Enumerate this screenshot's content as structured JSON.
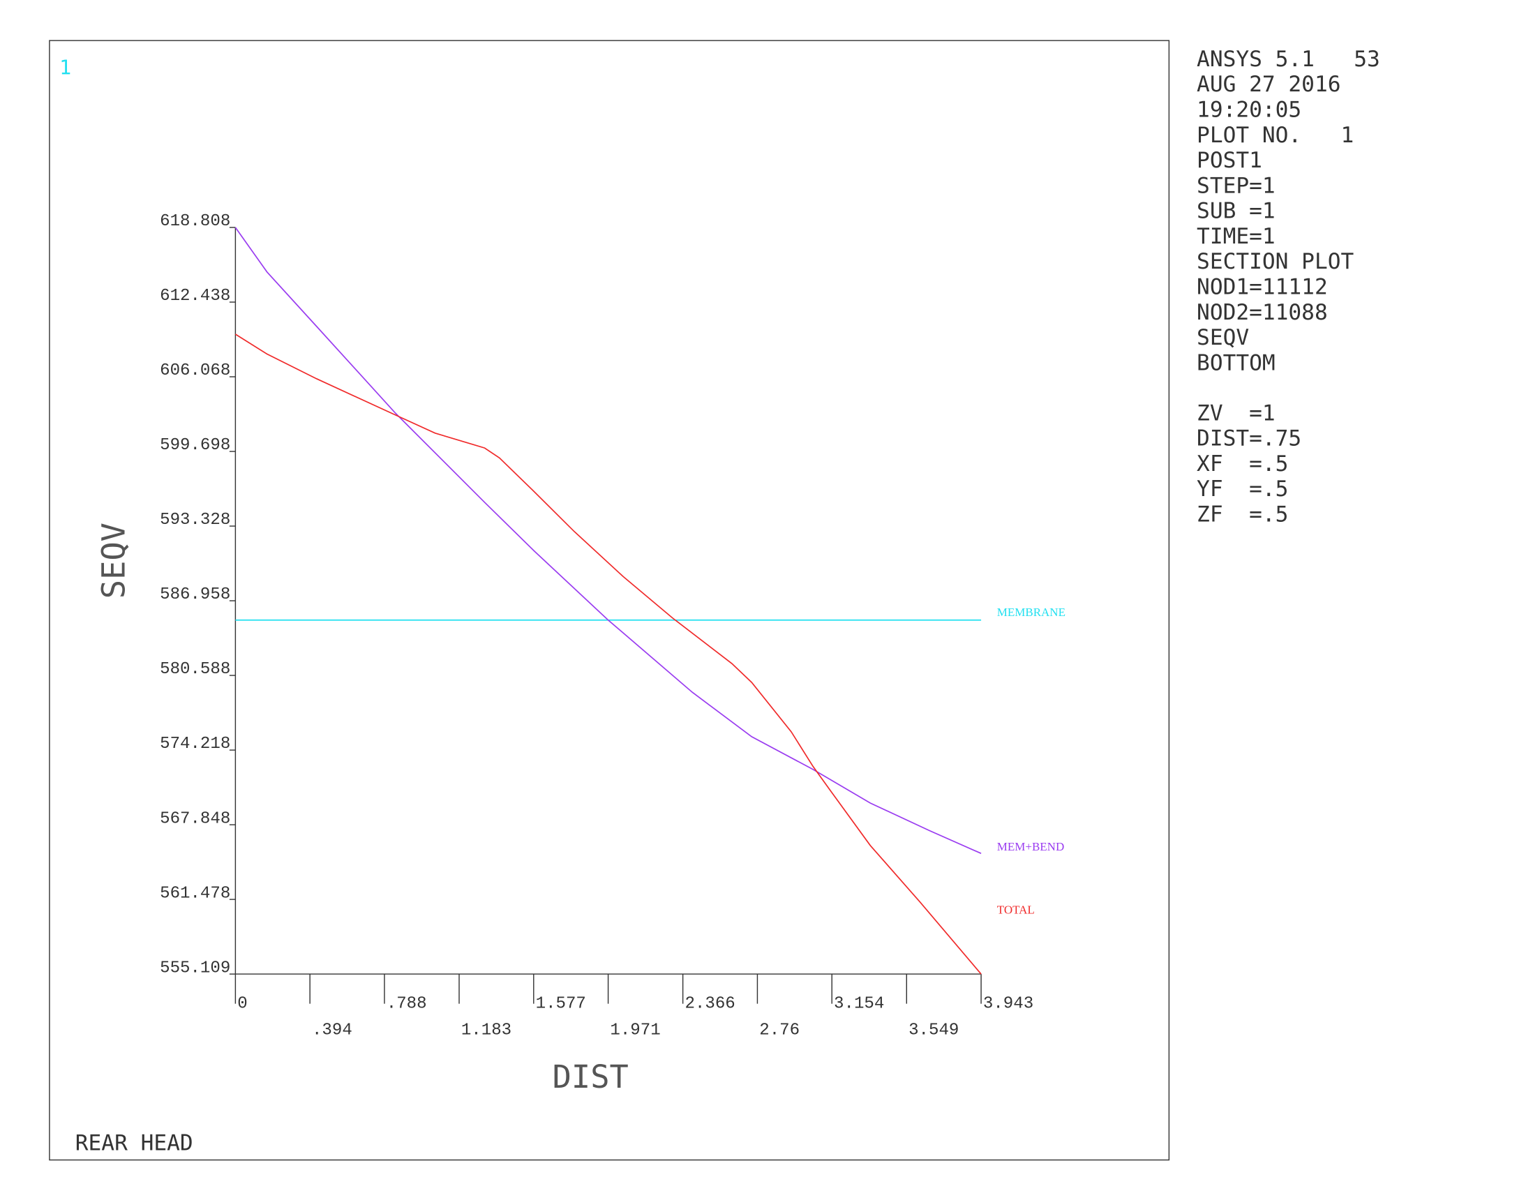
{
  "chart_data": {
    "type": "line",
    "plot_number_label": "1",
    "ylabel": "SEQV",
    "xlabel": "DIST",
    "caption": "REAR HEAD",
    "xlim": [
      0,
      3.943
    ],
    "ylim": [
      555.109,
      618.808
    ],
    "xticks": [
      0,
      {
        "value": 0.394,
        "label": ".394"
      },
      {
        "value": 0.788,
        "label": ".788"
      },
      1.183,
      1.577,
      1.971,
      2.366,
      2.76,
      3.154,
      3.549,
      3.943
    ],
    "yticks": [
      555.109,
      561.478,
      567.848,
      574.218,
      580.588,
      586.958,
      593.328,
      599.698,
      606.068,
      612.438,
      618.808
    ],
    "series": [
      {
        "name": "MEMBRANE",
        "color": "#22e0f0",
        "x": [
          0,
          3.943
        ],
        "values": [
          585.31,
          585.31
        ]
      },
      {
        "name": "MEM+BEND",
        "color": "#9a3cf0",
        "x": [
          0,
          0.167,
          0.429,
          0.847,
          1.318,
          1.579,
          1.971,
          2.416,
          2.73,
          3.054,
          3.357,
          3.671,
          3.943
        ],
        "values": [
          618.808,
          615.01,
          610.37,
          602.95,
          595.35,
          591.22,
          585.31,
          579.15,
          575.36,
          572.57,
          569.7,
          567.34,
          565.4
        ]
      },
      {
        "name": "TOTAL",
        "color": "#f02a2a",
        "x": [
          0,
          0.167,
          0.429,
          0.873,
          1.056,
          1.318,
          1.396,
          1.579,
          1.789,
          2.05,
          2.312,
          2.625,
          2.73,
          2.939,
          3.054,
          3.148,
          3.357,
          3.619,
          3.943
        ],
        "values": [
          609.7,
          608.01,
          605.9,
          602.61,
          601.26,
          599.99,
          599.15,
          596.28,
          592.91,
          589.03,
          585.48,
          581.6,
          579.99,
          575.78,
          572.83,
          570.72,
          566.08,
          561.27,
          555.109
        ]
      }
    ],
    "info_lines": [
      "ANSYS 5.1   53",
      "AUG 27 2016",
      "19:20:05",
      "PLOT NO.   1",
      "POST1",
      "STEP=1",
      "SUB =1",
      "TIME=1",
      "SECTION PLOT",
      "NOD1=11112",
      "NOD2=11088",
      "SEQV",
      "BOTTOM"
    ],
    "view_lines": [
      "ZV  =1",
      "DIST=.75",
      "XF  =.5",
      "YF  =.5",
      "ZF  =.5"
    ]
  }
}
